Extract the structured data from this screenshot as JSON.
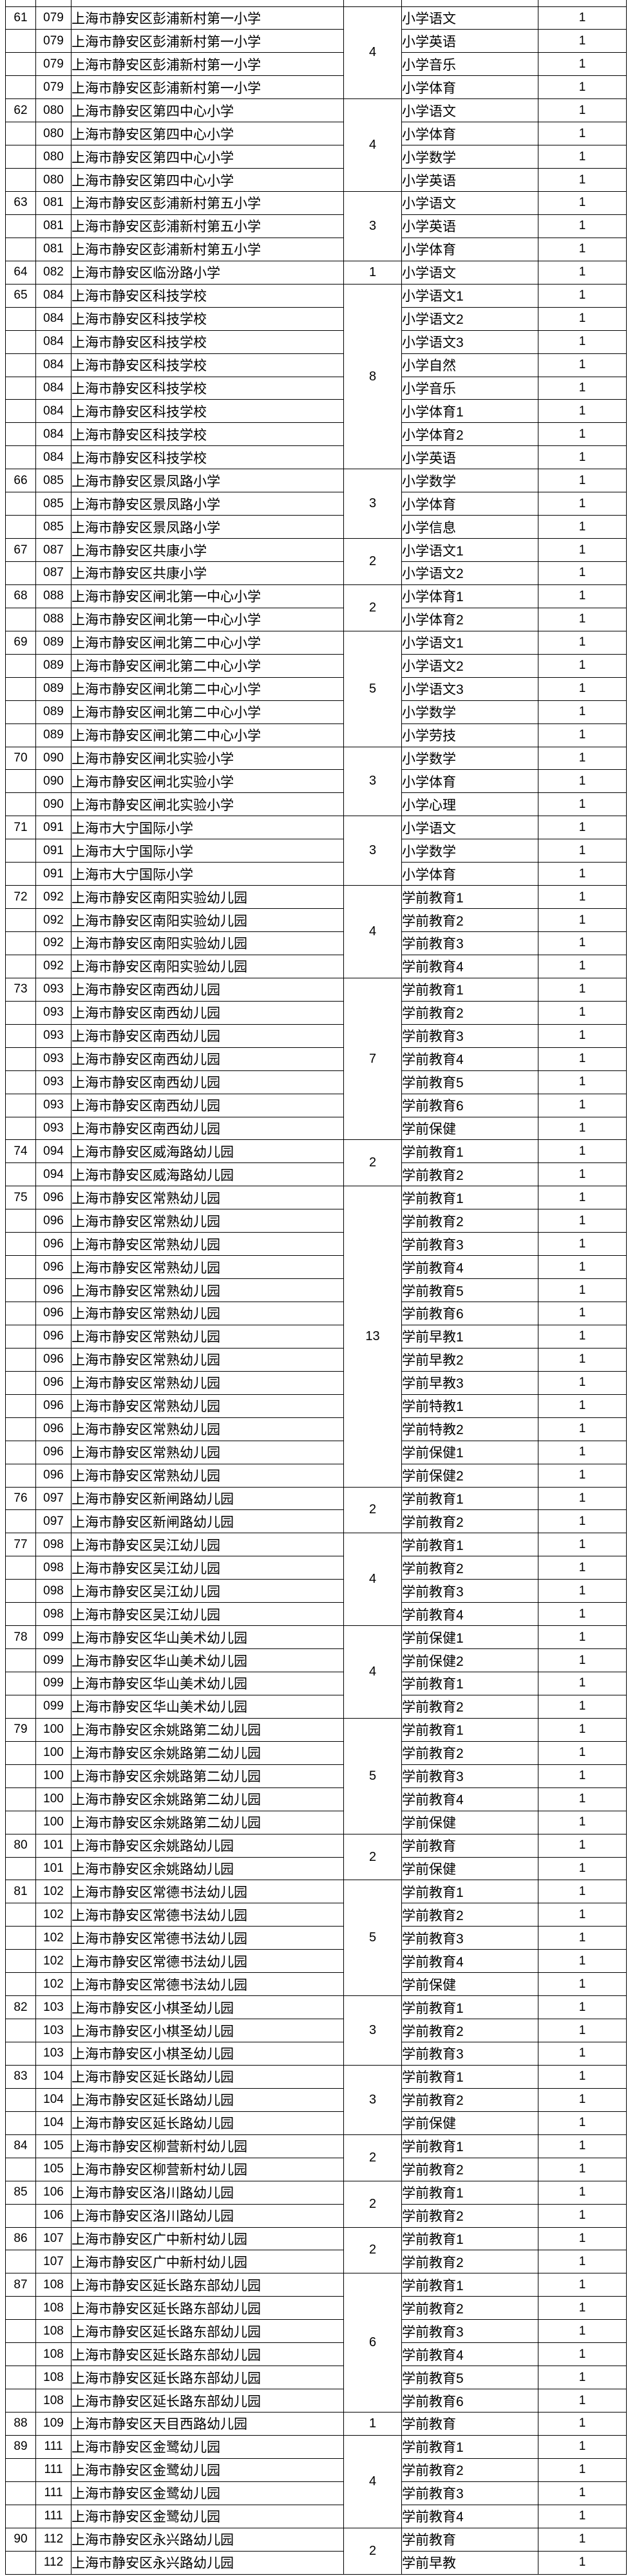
{
  "page": {
    "background_color": "#ffffff",
    "border_color": "#000000",
    "text_color": "#000000"
  },
  "table": {
    "groups": [
      {
        "seq": "61",
        "code": "079",
        "school": "上海市静安区彭浦新村第一小学",
        "total": "4",
        "rows": [
          {
            "subject": "小学语文",
            "count": "1"
          },
          {
            "subject": "小学英语",
            "count": "1"
          },
          {
            "subject": "小学音乐",
            "count": "1"
          },
          {
            "subject": "小学体育",
            "count": "1"
          }
        ]
      },
      {
        "seq": "62",
        "code": "080",
        "school": "上海市静安区第四中心小学",
        "total": "4",
        "rows": [
          {
            "subject": "小学语文",
            "count": "1"
          },
          {
            "subject": "小学体育",
            "count": "1"
          },
          {
            "subject": "小学数学",
            "count": "1"
          },
          {
            "subject": "小学英语",
            "count": "1"
          }
        ]
      },
      {
        "seq": "63",
        "code": "081",
        "school": "上海市静安区彭浦新村第五小学",
        "total": "3",
        "rows": [
          {
            "subject": "小学语文",
            "count": "1"
          },
          {
            "subject": "小学英语",
            "count": "1"
          },
          {
            "subject": "小学体育",
            "count": "1"
          }
        ]
      },
      {
        "seq": "64",
        "code": "082",
        "school": "上海市静安区临汾路小学",
        "total": "1",
        "rows": [
          {
            "subject": "小学语文",
            "count": "1"
          }
        ]
      },
      {
        "seq": "65",
        "code": "084",
        "school": "上海市静安区科技学校",
        "total": "8",
        "rows": [
          {
            "subject": "小学语文1",
            "count": "1"
          },
          {
            "subject": "小学语文2",
            "count": "1"
          },
          {
            "subject": "小学语文3",
            "count": "1"
          },
          {
            "subject": "小学自然",
            "count": "1"
          },
          {
            "subject": "小学音乐",
            "count": "1"
          },
          {
            "subject": "小学体育1",
            "count": "1"
          },
          {
            "subject": "小学体育2",
            "count": "1"
          },
          {
            "subject": "小学英语",
            "count": "1"
          }
        ]
      },
      {
        "seq": "66",
        "code": "085",
        "school": "上海市静安区景凤路小学",
        "total": "3",
        "rows": [
          {
            "subject": "小学数学",
            "count": "1"
          },
          {
            "subject": "小学体育",
            "count": "1"
          },
          {
            "subject": "小学信息",
            "count": "1"
          }
        ]
      },
      {
        "seq": "67",
        "code": "087",
        "school": "上海市静安区共康小学",
        "total": "2",
        "rows": [
          {
            "subject": "小学语文1",
            "count": "1"
          },
          {
            "subject": "小学语文2",
            "count": "1"
          }
        ]
      },
      {
        "seq": "68",
        "code": "088",
        "school": "上海市静安区闸北第一中心小学",
        "total": "2",
        "rows": [
          {
            "subject": "小学体育1",
            "count": "1"
          },
          {
            "subject": "小学体育2",
            "count": "1"
          }
        ]
      },
      {
        "seq": "69",
        "code": "089",
        "school": "上海市静安区闸北第二中心小学",
        "total": "5",
        "rows": [
          {
            "subject": "小学语文1",
            "count": "1"
          },
          {
            "subject": "小学语文2",
            "count": "1"
          },
          {
            "subject": "小学语文3",
            "count": "1"
          },
          {
            "subject": "小学数学",
            "count": "1"
          },
          {
            "subject": "小学劳技",
            "count": "1"
          }
        ]
      },
      {
        "seq": "70",
        "code": "090",
        "school": "上海市静安区闸北实验小学",
        "total": "3",
        "rows": [
          {
            "subject": "小学数学",
            "count": "1"
          },
          {
            "subject": "小学体育",
            "count": "1"
          },
          {
            "subject": "小学心理",
            "count": "1"
          }
        ]
      },
      {
        "seq": "71",
        "code": "091",
        "school": "上海市大宁国际小学",
        "total": "3",
        "rows": [
          {
            "subject": "小学语文",
            "count": "1"
          },
          {
            "subject": "小学数学",
            "count": "1"
          },
          {
            "subject": "小学体育",
            "count": "1"
          }
        ]
      },
      {
        "seq": "72",
        "code": "092",
        "school": "上海市静安区南阳实验幼儿园",
        "total": "4",
        "rows": [
          {
            "subject": "学前教育1",
            "count": "1"
          },
          {
            "subject": "学前教育2",
            "count": "1"
          },
          {
            "subject": "学前教育3",
            "count": "1"
          },
          {
            "subject": "学前教育4",
            "count": "1"
          }
        ]
      },
      {
        "seq": "73",
        "code": "093",
        "school": "上海市静安区南西幼儿园",
        "total": "7",
        "rows": [
          {
            "subject": "学前教育1",
            "count": "1"
          },
          {
            "subject": "学前教育2",
            "count": "1"
          },
          {
            "subject": "学前教育3",
            "count": "1"
          },
          {
            "subject": "学前教育4",
            "count": "1"
          },
          {
            "subject": "学前教育5",
            "count": "1"
          },
          {
            "subject": "学前教育6",
            "count": "1"
          },
          {
            "subject": "学前保健",
            "count": "1"
          }
        ]
      },
      {
        "seq": "74",
        "code": "094",
        "school": "上海市静安区威海路幼儿园",
        "total": "2",
        "rows": [
          {
            "subject": "学前教育1",
            "count": "1"
          },
          {
            "subject": "学前教育2",
            "count": "1"
          }
        ]
      },
      {
        "seq": "75",
        "code": "096",
        "school": "上海市静安区常熟幼儿园",
        "total": "13",
        "rows": [
          {
            "subject": "学前教育1",
            "count": "1"
          },
          {
            "subject": "学前教育2",
            "count": "1"
          },
          {
            "subject": "学前教育3",
            "count": "1"
          },
          {
            "subject": "学前教育4",
            "count": "1"
          },
          {
            "subject": "学前教育5",
            "count": "1"
          },
          {
            "subject": "学前教育6",
            "count": "1"
          },
          {
            "subject": "学前早教1",
            "count": "1"
          },
          {
            "subject": "学前早教2",
            "count": "1"
          },
          {
            "subject": "学前早教3",
            "count": "1"
          },
          {
            "subject": "学前特教1",
            "count": "1"
          },
          {
            "subject": "学前特教2",
            "count": "1"
          },
          {
            "subject": "学前保健1",
            "count": "1"
          },
          {
            "subject": "学前保健2",
            "count": "1"
          }
        ]
      },
      {
        "seq": "76",
        "code": "097",
        "school": "上海市静安区新闸路幼儿园",
        "total": "2",
        "rows": [
          {
            "subject": "学前教育1",
            "count": "1"
          },
          {
            "subject": "学前教育2",
            "count": "1"
          }
        ]
      },
      {
        "seq": "77",
        "code": "098",
        "school": "上海市静安区吴江幼儿园",
        "total": "4",
        "rows": [
          {
            "subject": "学前教育1",
            "count": "1"
          },
          {
            "subject": "学前教育2",
            "count": "1"
          },
          {
            "subject": "学前教育3",
            "count": "1"
          },
          {
            "subject": "学前教育4",
            "count": "1"
          }
        ]
      },
      {
        "seq": "78",
        "code": "099",
        "school": "上海市静安区华山美术幼儿园",
        "total": "4",
        "rows": [
          {
            "subject": "学前保健1",
            "count": "1"
          },
          {
            "subject": "学前保健2",
            "count": "1"
          },
          {
            "subject": "学前教育1",
            "count": "1"
          },
          {
            "subject": "学前教育2",
            "count": "1"
          }
        ]
      },
      {
        "seq": "79",
        "code": "100",
        "school": "上海市静安区余姚路第二幼儿园",
        "total": "5",
        "rows": [
          {
            "subject": "学前教育1",
            "count": "1"
          },
          {
            "subject": "学前教育2",
            "count": "1"
          },
          {
            "subject": "学前教育3",
            "count": "1"
          },
          {
            "subject": "学前教育4",
            "count": "1"
          },
          {
            "subject": "学前保健",
            "count": "1"
          }
        ]
      },
      {
        "seq": "80",
        "code": "101",
        "school": "上海市静安区余姚路幼儿园",
        "total": "2",
        "rows": [
          {
            "subject": "学前教育",
            "count": "1"
          },
          {
            "subject": "学前保健",
            "count": "1"
          }
        ]
      },
      {
        "seq": "81",
        "code": "102",
        "school": "上海市静安区常德书法幼儿园",
        "total": "5",
        "rows": [
          {
            "subject": "学前教育1",
            "count": "1"
          },
          {
            "subject": "学前教育2",
            "count": "1"
          },
          {
            "subject": "学前教育3",
            "count": "1"
          },
          {
            "subject": "学前教育4",
            "count": "1"
          },
          {
            "subject": "学前保健",
            "count": "1"
          }
        ]
      },
      {
        "seq": "82",
        "code": "103",
        "school": "上海市静安区小棋圣幼儿园",
        "total": "3",
        "rows": [
          {
            "subject": "学前教育1",
            "count": "1"
          },
          {
            "subject": "学前教育2",
            "count": "1"
          },
          {
            "subject": "学前教育3",
            "count": "1"
          }
        ]
      },
      {
        "seq": "83",
        "code": "104",
        "school": "上海市静安区延长路幼儿园",
        "total": "3",
        "rows": [
          {
            "subject": "学前教育1",
            "count": "1"
          },
          {
            "subject": "学前教育2",
            "count": "1"
          },
          {
            "subject": "学前保健",
            "count": "1"
          }
        ]
      },
      {
        "seq": "84",
        "code": "105",
        "school": "上海市静安区柳营新村幼儿园",
        "total": "2",
        "rows": [
          {
            "subject": "学前教育1",
            "count": "1"
          },
          {
            "subject": "学前教育2",
            "count": "1"
          }
        ]
      },
      {
        "seq": "85",
        "code": "106",
        "school": "上海市静安区洛川路幼儿园",
        "total": "2",
        "rows": [
          {
            "subject": "学前教育1",
            "count": "1"
          },
          {
            "subject": "学前教育2",
            "count": "1"
          }
        ]
      },
      {
        "seq": "86",
        "code": "107",
        "school": "上海市静安区广中新村幼儿园",
        "total": "2",
        "rows": [
          {
            "subject": "学前教育1",
            "count": "1"
          },
          {
            "subject": "学前教育2",
            "count": "1"
          }
        ]
      },
      {
        "seq": "87",
        "code": "108",
        "school": "上海市静安区延长路东部幼儿园",
        "total": "6",
        "rows": [
          {
            "subject": "学前教育1",
            "count": "1"
          },
          {
            "subject": "学前教育2",
            "count": "1"
          },
          {
            "subject": "学前教育3",
            "count": "1"
          },
          {
            "subject": "学前教育4",
            "count": "1"
          },
          {
            "subject": "学前教育5",
            "count": "1"
          },
          {
            "subject": "学前教育6",
            "count": "1"
          }
        ]
      },
      {
        "seq": "88",
        "code": "109",
        "school": "上海市静安区天目西路幼儿园",
        "total": "1",
        "rows": [
          {
            "subject": "学前教育",
            "count": "1"
          }
        ]
      },
      {
        "seq": "89",
        "code": "111",
        "school": "上海市静安区金鹭幼儿园",
        "total": "4",
        "rows": [
          {
            "subject": "学前教育1",
            "count": "1"
          },
          {
            "subject": "学前教育2",
            "count": "1"
          },
          {
            "subject": "学前教育3",
            "count": "1"
          },
          {
            "subject": "学前教育4",
            "count": "1"
          }
        ]
      },
      {
        "seq": "90",
        "code": "112",
        "school": "上海市静安区永兴路幼儿园",
        "total": "2",
        "rows": [
          {
            "subject": "学前教育",
            "count": "1"
          },
          {
            "subject": "学前早教",
            "count": "1"
          }
        ]
      }
    ]
  }
}
